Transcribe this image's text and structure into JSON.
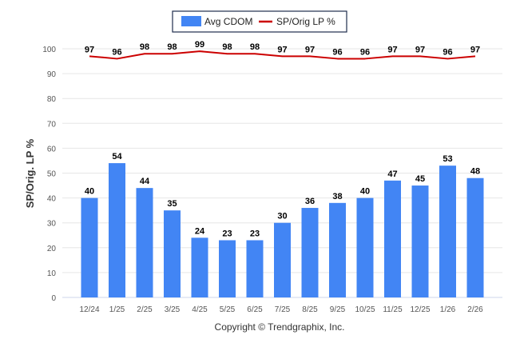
{
  "chart_data": {
    "type": "bar",
    "categories": [
      "12/24",
      "1/25",
      "2/25",
      "3/25",
      "4/25",
      "5/25",
      "6/25",
      "7/25",
      "8/25",
      "9/25",
      "10/25",
      "11/25",
      "12/25",
      "1/26",
      "2/26"
    ],
    "series": [
      {
        "name": "Avg CDOM",
        "type": "bar",
        "color": "#4285f4",
        "values": [
          40,
          54,
          44,
          35,
          24,
          23,
          23,
          30,
          36,
          38,
          40,
          47,
          45,
          53,
          48
        ]
      },
      {
        "name": "SP/Orig LP %",
        "type": "line",
        "color": "#cc0000",
        "values": [
          97,
          96,
          98,
          98,
          99,
          98,
          98,
          97,
          97,
          96,
          96,
          97,
          97,
          96,
          97
        ]
      }
    ],
    "ylabel": "SP/Orig. LP %",
    "ylim": [
      0,
      100
    ],
    "yticks": [
      0,
      10,
      20,
      30,
      40,
      50,
      60,
      70,
      80,
      90,
      100
    ],
    "grid": true,
    "legend": "top-center",
    "footer": "Copyright © Trendgraphix, Inc."
  }
}
